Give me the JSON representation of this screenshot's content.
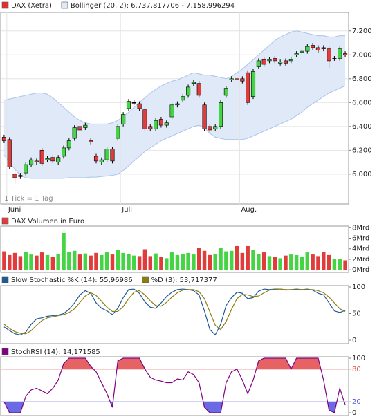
{
  "chart_data": [
    {
      "type": "candlestick",
      "name": "DAX (Xetra)",
      "color": "#e03030",
      "annotation": "1 Tick = 1 Tag",
      "categories": [
        null,
        "Juni",
        null,
        null,
        null,
        null,
        null,
        null,
        null,
        null,
        null,
        null,
        null,
        null,
        null,
        null,
        null,
        null,
        null,
        null,
        null,
        null,
        "Juli",
        null,
        null,
        null,
        null,
        null,
        null,
        null,
        null,
        null,
        null,
        null,
        null,
        null,
        null,
        null,
        null,
        null,
        null,
        null,
        null,
        null,
        "Aug.",
        null,
        null,
        null,
        null,
        null,
        null,
        null,
        null,
        null,
        null,
        null,
        null,
        null,
        null,
        null,
        null,
        null,
        null,
        null
      ],
      "open": [
        6310,
        6290,
        6000,
        5990,
        6010,
        6080,
        6110,
        6200,
        6120,
        6140,
        6100,
        6150,
        6220,
        6300,
        6400,
        6390,
        6280,
        6150,
        6100,
        6120,
        6210,
        6300,
        6420,
        6550,
        6600,
        6590,
        6540,
        6400,
        6380,
        6460,
        6410,
        6480,
        6580,
        6620,
        6660,
        6760,
        6760,
        6580,
        6400,
        6380,
        6400,
        6660,
        6790,
        6800,
        6800,
        6850,
        6650,
        6900,
        6960,
        6950,
        6970,
        6930,
        6950,
        6950,
        7000,
        7020,
        7030,
        7080,
        7060,
        7060,
        7050,
        6970,
        6970,
        7010
      ],
      "high": [
        6330,
        6310,
        6020,
        6010,
        6100,
        6140,
        6130,
        6220,
        6150,
        6160,
        6160,
        6240,
        6300,
        6410,
        6420,
        6430,
        6300,
        6170,
        6140,
        6230,
        6230,
        6420,
        6520,
        6630,
        6620,
        6610,
        6560,
        6420,
        6470,
        6480,
        6450,
        6600,
        6610,
        6670,
        6750,
        6790,
        6780,
        6600,
        6420,
        6420,
        6620,
        6740,
        6820,
        6820,
        6820,
        6870,
        6880,
        6970,
        6980,
        6980,
        6990,
        6960,
        6970,
        6980,
        7030,
        7050,
        7090,
        7100,
        7080,
        7080,
        7070,
        6990,
        7070,
        7030
      ],
      "low": [
        6260,
        6040,
        5920,
        5960,
        5990,
        6060,
        6080,
        6070,
        6100,
        6090,
        6080,
        6130,
        6200,
        6280,
        6350,
        6370,
        6250,
        6090,
        6080,
        6100,
        6090,
        6280,
        6400,
        6530,
        6580,
        6530,
        6360,
        6360,
        6360,
        6390,
        6390,
        6460,
        6560,
        6600,
        6640,
        6740,
        6640,
        6360,
        6350,
        6360,
        6380,
        6640,
        6770,
        6770,
        6760,
        6580,
        6630,
        6880,
        6900,
        6930,
        6930,
        6910,
        6910,
        6930,
        6980,
        7000,
        7010,
        7040,
        7020,
        7030,
        6890,
        6950,
        6950,
        6980
      ],
      "close": [
        6280,
        6060,
        5970,
        5980,
        6080,
        6120,
        6100,
        6090,
        6130,
        6110,
        6140,
        6220,
        6280,
        6390,
        6370,
        6410,
        6270,
        6110,
        6120,
        6210,
        6110,
        6400,
        6500,
        6610,
        6600,
        6550,
        6380,
        6380,
        6450,
        6410,
        6430,
        6580,
        6590,
        6650,
        6730,
        6770,
        6660,
        6380,
        6370,
        6400,
        6600,
        6720,
        6800,
        6790,
        6780,
        6600,
        6860,
        6950,
        6920,
        6960,
        6950,
        6940,
        6930,
        6960,
        7010,
        7030,
        7070,
        7060,
        7040,
        7050,
        6950,
        6970,
        7050,
        7000
      ],
      "up_color": "#44d444",
      "down_color": "#e03c3c",
      "bands": {
        "name": "Bollinger (20, 2): 6.737,817706 - 7.158,996294",
        "color": "#dfe9f8",
        "line_color": "#a9c3ea",
        "upper": [
          6620,
          6630,
          6640,
          6650,
          6660,
          6670,
          6680,
          6680,
          6670,
          6640,
          6600,
          6560,
          6520,
          6480,
          6450,
          6430,
          6420,
          6420,
          6420,
          6420,
          6430,
          6450,
          6480,
          6520,
          6560,
          6600,
          6640,
          6680,
          6710,
          6740,
          6760,
          6780,
          6790,
          6810,
          6830,
          6850,
          6840,
          6830,
          6830,
          6820,
          6810,
          6800,
          6820,
          6850,
          6880,
          6920,
          6960,
          7000,
          7040,
          7080,
          7120,
          7150,
          7170,
          7190,
          7200,
          7190,
          7180,
          7170,
          7160,
          7160,
          7150,
          7150,
          7160,
          7160
        ],
        "lower": [
          6160,
          6100,
          6040,
          5990,
          5970,
          5965,
          5965,
          5965,
          5965,
          5965,
          5965,
          5965,
          5970,
          5970,
          5970,
          5970,
          5975,
          5975,
          5980,
          5985,
          5990,
          6000,
          6030,
          6070,
          6110,
          6150,
          6190,
          6220,
          6250,
          6280,
          6300,
          6320,
          6340,
          6360,
          6380,
          6400,
          6410,
          6390,
          6340,
          6310,
          6300,
          6290,
          6290,
          6290,
          6290,
          6300,
          6320,
          6340,
          6360,
          6380,
          6400,
          6420,
          6440,
          6460,
          6490,
          6520,
          6560,
          6590,
          6620,
          6650,
          6680,
          6700,
          6720,
          6740
        ]
      },
      "ylim": [
        5750,
        7355
      ],
      "yticks": [
        {
          "value": 6000,
          "label": "6.000"
        },
        {
          "value": 6200,
          "label": "6.200"
        },
        {
          "value": 6400,
          "label": "6.400"
        },
        {
          "value": 6600,
          "label": "6.600"
        },
        {
          "value": 6800,
          "label": "6.800"
        },
        {
          "value": 7000,
          "label": "7.000"
        },
        {
          "value": 7200,
          "label": "7.200"
        }
      ],
      "grid": true
    },
    {
      "type": "bar",
      "title": "DAX Volumen in Euro",
      "color": "#e03c3c",
      "values": [
        3.5,
        2.8,
        3.2,
        2.6,
        3.4,
        2.9,
        2.7,
        3.3,
        2.8,
        2.5,
        3.0,
        7.0,
        3.4,
        3.6,
        2.9,
        3.1,
        2.7,
        3.2,
        2.8,
        3.3,
        2.9,
        3.8,
        3.2,
        3.0,
        2.7,
        2.6,
        3.9,
        2.6,
        3.1,
        2.5,
        2.2,
        3.3,
        2.8,
        3.0,
        3.2,
        2.9,
        4.2,
        3.6,
        2.8,
        3.0,
        4.1,
        3.5,
        3.6,
        4.5,
        3.2,
        4.5,
        3.8,
        3.0,
        3.3,
        2.6,
        2.4,
        2.2,
        2.7,
        2.9,
        2.8,
        2.5,
        3.3,
        2.9,
        2.6,
        3.4,
        2.8,
        2.1,
        2.0,
        1.8
      ],
      "ylim": [
        -0.5,
        8.3
      ],
      "yticks": [
        {
          "value": 0,
          "label": "0Mrd"
        },
        {
          "value": 2,
          "label": "2Mrd"
        },
        {
          "value": 4,
          "label": "4Mrd"
        },
        {
          "value": 6,
          "label": "6Mrd"
        },
        {
          "value": 8,
          "label": "8Mrd"
        }
      ]
    },
    {
      "type": "line",
      "series": [
        {
          "name": "Slow Stochastic %K (14): 55,96986",
          "color": "#1f5a96",
          "values": [
            25,
            18,
            12,
            10,
            15,
            30,
            40,
            42,
            45,
            46,
            47,
            50,
            58,
            70,
            85,
            93,
            88,
            70,
            60,
            55,
            48,
            60,
            80,
            95,
            96,
            88,
            72,
            62,
            60,
            70,
            82,
            90,
            95,
            96,
            95,
            93,
            85,
            55,
            20,
            10,
            30,
            65,
            80,
            90,
            88,
            78,
            80,
            92,
            96,
            95,
            96,
            96,
            94,
            95,
            96,
            95,
            96,
            94,
            88,
            85,
            70,
            55,
            52,
            56
          ]
        },
        {
          "name": "%D (3): 53,717377",
          "color": "#8c7c10",
          "values": [
            30,
            22,
            16,
            13,
            12,
            18,
            28,
            37,
            42,
            44,
            46,
            48,
            52,
            59,
            71,
            83,
            89,
            84,
            73,
            62,
            54,
            54,
            63,
            78,
            90,
            93,
            85,
            74,
            65,
            64,
            71,
            81,
            89,
            94,
            95,
            95,
            91,
            78,
            53,
            28,
            20,
            35,
            58,
            78,
            86,
            85,
            82,
            83,
            89,
            94,
            95,
            96,
            95,
            95,
            95,
            95,
            95,
            95,
            93,
            89,
            81,
            70,
            59,
            54
          ]
        }
      ],
      "ylim": [
        -6.5,
        102.6
      ],
      "yticks": [
        0,
        50,
        100
      ]
    },
    {
      "type": "line",
      "series": [
        {
          "name": "StochRSI (14): 14,171585",
          "color": "#800080",
          "values": [
            20,
            0,
            0,
            0,
            30,
            42,
            45,
            40,
            35,
            45,
            60,
            90,
            100,
            100,
            100,
            100,
            85,
            75,
            55,
            35,
            10,
            95,
            100,
            100,
            100,
            100,
            80,
            65,
            60,
            58,
            55,
            55,
            62,
            60,
            75,
            70,
            55,
            10,
            0,
            0,
            0,
            55,
            75,
            80,
            60,
            35,
            60,
            95,
            100,
            100,
            100,
            100,
            100,
            80,
            100,
            100,
            100,
            100,
            100,
            60,
            5,
            0,
            45,
            14
          ]
        }
      ],
      "upper_level": {
        "value": 80,
        "color": "#e04848"
      },
      "lower_level": {
        "value": 20,
        "color": "#5050e0"
      },
      "ylim": [
        -5,
        102.5
      ],
      "yticks": [
        0,
        20,
        80,
        100
      ]
    }
  ]
}
